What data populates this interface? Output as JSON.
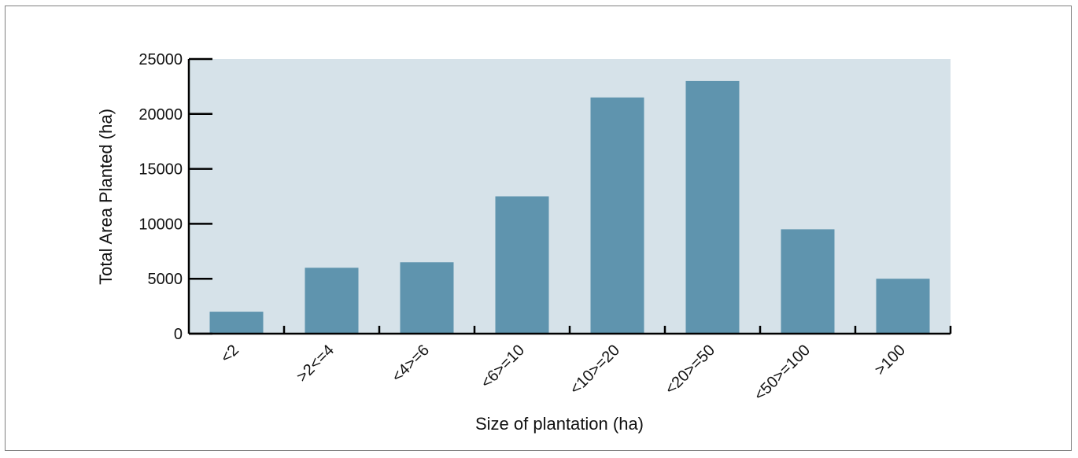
{
  "chart_data": {
    "type": "bar",
    "title": "",
    "xlabel": "Size of plantation (ha)",
    "ylabel": "Total Area Planted (ha)",
    "categories": [
      "<2",
      ">2<=4",
      "<4>=6",
      "<6>=10",
      "<10>=20",
      "<20>=50",
      "<50>=100",
      ">100"
    ],
    "values": [
      2000,
      6000,
      6500,
      12500,
      21500,
      23000,
      9500,
      5000
    ],
    "ylim": [
      0,
      25000
    ],
    "yticks": [
      "0",
      "5000",
      "10000",
      "15000",
      "20000",
      "25000"
    ],
    "grid": false,
    "legend": "none"
  },
  "colors": {
    "plot_background": "#d6e2e9",
    "bar": "#5f94ae",
    "axis": "#000000"
  }
}
